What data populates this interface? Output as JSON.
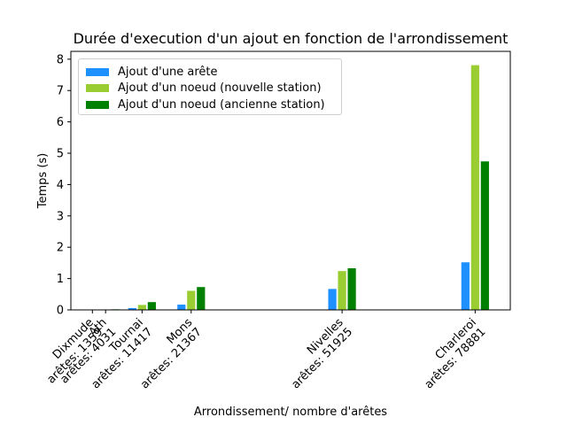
{
  "chart_data": {
    "type": "bar",
    "title": "Durée d'execution d'un ajout en fonction de l'arrondissement",
    "xlabel": "Arrondissement/ nombre d'arêtes",
    "ylabel": "Temps (s)",
    "ylim": [
      0,
      8.25
    ],
    "xlim": [
      -3000,
      86000
    ],
    "yticks": [
      0,
      1,
      2,
      3,
      4,
      5,
      6,
      7,
      8
    ],
    "grid": false,
    "legend_position": "top-left",
    "x": [
      1359,
      4031,
      11417,
      21367,
      51925,
      78881
    ],
    "categories": [
      [
        "Dixmude",
        "arêtes: 1359"
      ],
      [
        "Ath",
        "arêtes: 4031"
      ],
      [
        "Tournai",
        "arêtes: 11417"
      ],
      [
        "Mons",
        "arêtes: 21367"
      ],
      [
        "Nivelles",
        "arêtes: 51925"
      ],
      [
        "Charleroi",
        "arêtes: 78881"
      ]
    ],
    "series": [
      {
        "name": "Ajout d'une arête",
        "color": "#1e90ff",
        "values": [
          0.005,
          0.01,
          0.07,
          0.18,
          0.68,
          1.53
        ]
      },
      {
        "name": "Ajout d'un noeud (nouvelle station)",
        "color": "#9acd32",
        "values": [
          0.01,
          0.02,
          0.17,
          0.62,
          1.25,
          7.82
        ]
      },
      {
        "name": "Ajout d'un noeud (ancienne station)",
        "color": "#008000",
        "values": [
          0.015,
          0.03,
          0.26,
          0.74,
          1.34,
          4.75
        ]
      }
    ]
  }
}
